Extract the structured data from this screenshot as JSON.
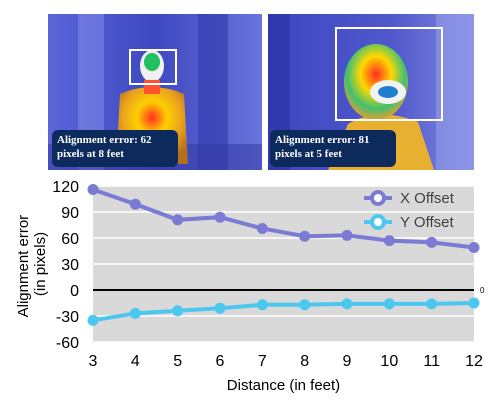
{
  "images": {
    "left": {
      "caption": "Alignment error: 62 pixels at 8 feet"
    },
    "right": {
      "caption": "Alignment error: 81 pixels at 5 feet"
    }
  },
  "colors": {
    "x_series": "#7b7bd4",
    "y_series": "#4cc8f0",
    "plot_background": "#d9d9d9",
    "grid": "#ffffff",
    "zero_line": "#000000",
    "caption_background": "#0d2a5c"
  },
  "chart_data": {
    "type": "line",
    "x": [
      3,
      4,
      5,
      6,
      7,
      8,
      9,
      10,
      11,
      12
    ],
    "series": [
      {
        "name": "X Offset",
        "values": [
          116,
          99,
          81,
          84,
          71,
          62,
          63,
          57,
          55,
          49
        ]
      },
      {
        "name": "Y Offset",
        "values": [
          -35,
          -27,
          -24,
          -21,
          -17,
          -17,
          -16,
          -16,
          -16,
          -15
        ]
      }
    ],
    "title": "",
    "xlabel": "Distance (in feet)",
    "ylabel": "Alignment error (in pixels)",
    "ylim": [
      -60,
      120
    ],
    "yticks": [
      120,
      90,
      60,
      30,
      0,
      -30,
      -60
    ],
    "xlim": [
      3,
      12
    ],
    "zero_label": "0",
    "grid": true,
    "legend": "top-right"
  }
}
